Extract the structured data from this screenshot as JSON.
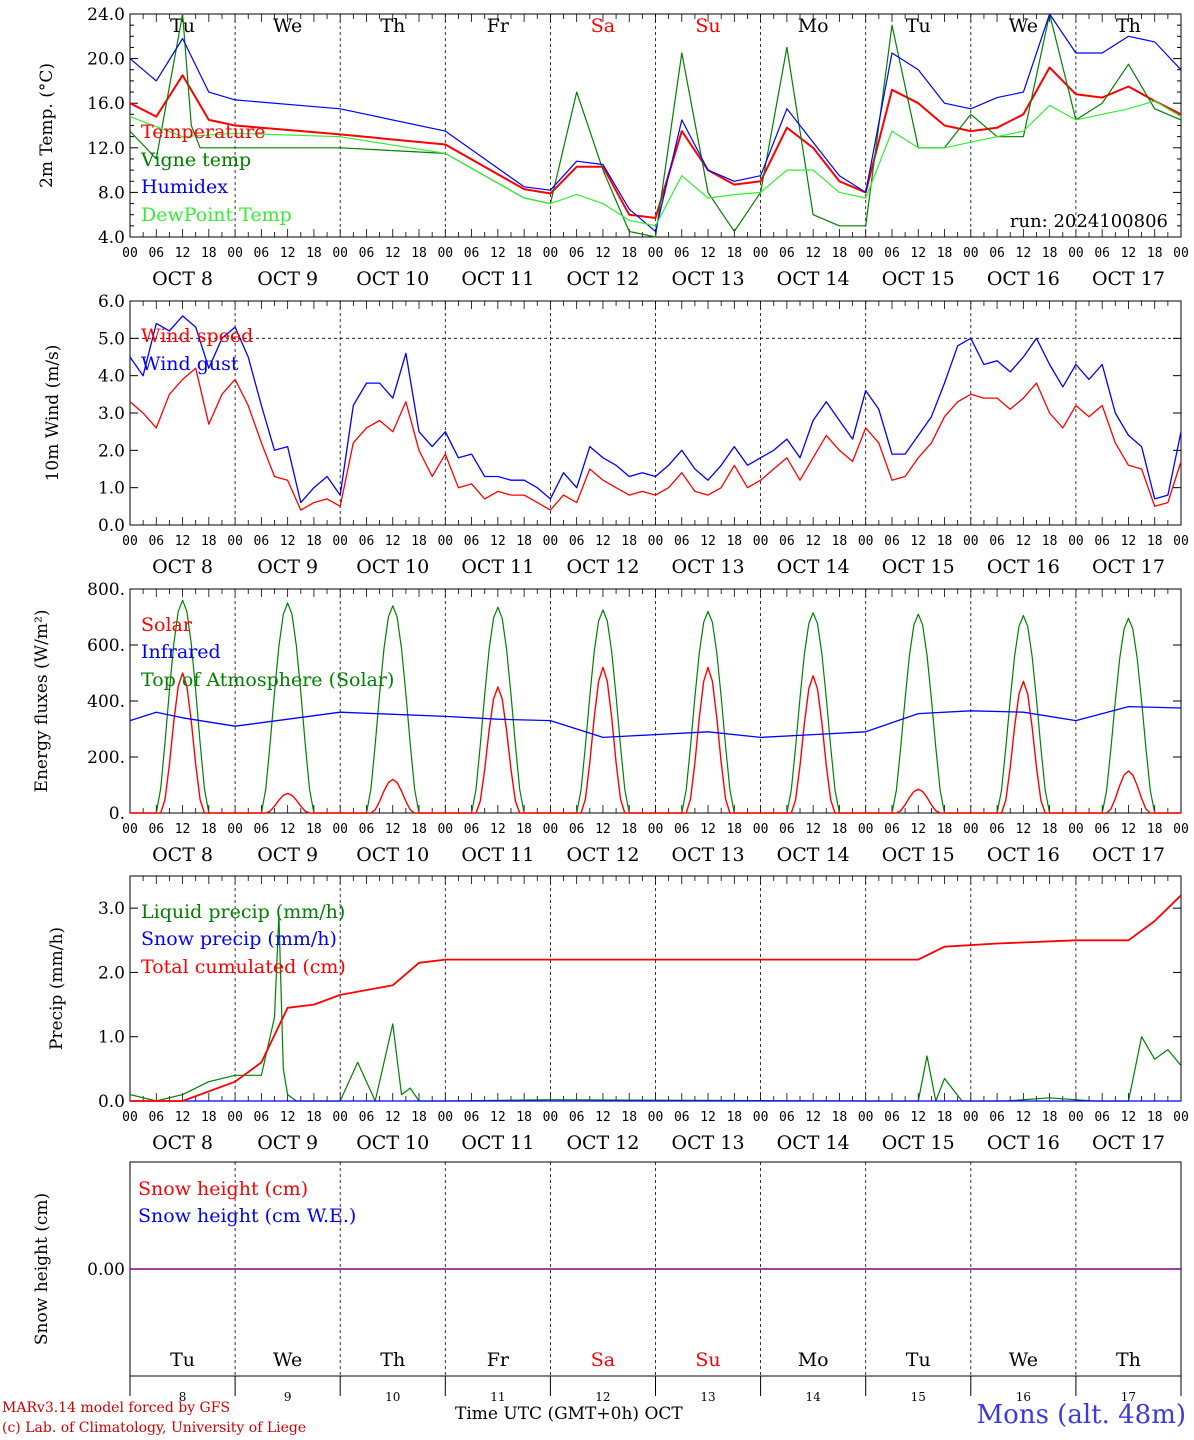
{
  "colors": {
    "red": "#ff0000",
    "blue": "#0000ff",
    "green": "#008000",
    "lightgreen": "#33ee33",
    "purple": "#800080"
  },
  "days": [
    "Tu",
    "We",
    "Th",
    "Fr",
    "Sa",
    "Su",
    "Mo",
    "Tu",
    "We",
    "Th"
  ],
  "weekend_days": [
    "Sa",
    "Su"
  ],
  "dates": [
    "OCT  8",
    "OCT  9",
    "OCT 10",
    "OCT 11",
    "OCT 12",
    "OCT 13",
    "OCT 14",
    "OCT 15",
    "OCT 16",
    "OCT 17"
  ],
  "bottom_dates": [
    "8",
    "9",
    "10",
    "11",
    "12",
    "13",
    "14",
    "15",
    "16",
    "17"
  ],
  "hour_ticks": [
    "00",
    "06",
    "12",
    "18"
  ],
  "end_hour": "00",
  "footer": {
    "line1": "MARv3.14 model forced by GFS",
    "line2": "(c) Lab. of Climatology, University of Liege",
    "xtitle": "Time UTC (GMT+0h) OCT",
    "station": "Mons (alt. 48m)"
  },
  "chart_data": [
    {
      "type": "line",
      "ylabel": "2m Temp. (°C)",
      "ylim": [
        4,
        24
      ],
      "yticks": [
        "4.0",
        "8.0",
        "12.0",
        "16.0",
        "20.0",
        "24.0"
      ],
      "annotation": "run: 2024100806",
      "x_unit": "hours from 00 UTC Oct 8",
      "series": [
        {
          "name": "Temperature",
          "color": "red",
          "x": [
            0,
            6,
            12,
            18,
            24,
            48,
            72,
            90,
            96,
            102,
            108,
            114,
            120,
            126,
            132,
            138,
            144,
            150,
            156,
            162,
            168,
            174,
            180,
            186,
            192,
            198,
            204,
            210,
            216,
            222,
            228,
            234,
            240
          ],
          "values": [
            16,
            14.8,
            18.5,
            14.5,
            14,
            13.2,
            12.3,
            8.3,
            7.9,
            10.3,
            10.3,
            6,
            5.7,
            13.5,
            10,
            8.7,
            9,
            13.8,
            12,
            9,
            8,
            17.2,
            16,
            14,
            13.5,
            13.8,
            15,
            19.2,
            16.8,
            16.5,
            17.5,
            16.2,
            15
          ]
        },
        {
          "name": "Vigne temp",
          "color": "green",
          "x": [
            0,
            6,
            12,
            14,
            16,
            18,
            24,
            48,
            72,
            90,
            96,
            102,
            108,
            114,
            120,
            126,
            132,
            138,
            144,
            150,
            156,
            162,
            168,
            174,
            180,
            186,
            192,
            198,
            204,
            210,
            216,
            222,
            228,
            234,
            240
          ],
          "values": [
            13.5,
            11,
            24,
            14,
            12,
            12,
            12,
            12,
            11.5,
            7.5,
            7,
            17,
            10,
            4.5,
            4,
            20.5,
            8,
            4.5,
            8,
            21,
            6,
            5,
            5,
            23,
            12,
            12,
            15,
            13,
            13,
            24,
            14.5,
            16,
            19.5,
            15.5,
            14.5
          ]
        },
        {
          "name": "Humidex",
          "color": "blue",
          "x": [
            0,
            6,
            12,
            18,
            24,
            48,
            72,
            90,
            96,
            102,
            108,
            114,
            120,
            126,
            132,
            138,
            144,
            150,
            156,
            162,
            168,
            174,
            180,
            186,
            192,
            198,
            204,
            210,
            216,
            222,
            228,
            234,
            240
          ],
          "values": [
            20,
            18,
            21.8,
            17,
            16.3,
            15.5,
            13.5,
            8.5,
            8.2,
            10.8,
            10.5,
            6.5,
            4.5,
            14.5,
            10,
            9,
            9.5,
            15.5,
            12.5,
            9.5,
            8,
            20.5,
            19,
            16,
            15.5,
            16.5,
            17,
            24,
            20.5,
            20.5,
            22,
            21.5,
            19
          ]
        },
        {
          "name": "DewPoint Temp",
          "color": "lightgreen",
          "x": [
            0,
            12,
            24,
            48,
            72,
            90,
            96,
            102,
            108,
            114,
            120,
            126,
            132,
            138,
            144,
            150,
            156,
            162,
            168,
            174,
            180,
            186,
            192,
            198,
            204,
            210,
            216,
            222,
            228,
            234,
            240
          ],
          "values": [
            14.8,
            13,
            13.3,
            13,
            11.5,
            7.5,
            7,
            7.8,
            7,
            5.5,
            5,
            9.5,
            7.5,
            7.8,
            8,
            10,
            10,
            8,
            7.5,
            13.5,
            12,
            12,
            12.5,
            13,
            13.5,
            15.8,
            14.5,
            15,
            15.5,
            16.2,
            14.8
          ]
        }
      ]
    },
    {
      "type": "line",
      "ylabel": "10m Wind (m/s)",
      "ylim": [
        0,
        6
      ],
      "yticks": [
        "0.0",
        "1.0",
        "2.0",
        "3.0",
        "4.0",
        "5.0",
        "6.0"
      ],
      "ref_line": 5,
      "series": [
        {
          "name": "Wind speed",
          "color": "red",
          "x": [
            0,
            3,
            6,
            9,
            12,
            15,
            18,
            21,
            24,
            27,
            30,
            33,
            36,
            39,
            42,
            45,
            48,
            51,
            54,
            57,
            60,
            63,
            66,
            69,
            72,
            75,
            78,
            81,
            84,
            87,
            90,
            93,
            96,
            99,
            102,
            105,
            108,
            111,
            114,
            117,
            120,
            123,
            126,
            129,
            132,
            135,
            138,
            141,
            144,
            147,
            150,
            153,
            156,
            159,
            162,
            165,
            168,
            171,
            174,
            177,
            180,
            183,
            186,
            189,
            192,
            195,
            198,
            201,
            204,
            207,
            210,
            213,
            216,
            219,
            222,
            225,
            228,
            231,
            234,
            237,
            240
          ],
          "values": [
            3.3,
            3.0,
            2.6,
            3.5,
            3.9,
            4.2,
            2.7,
            3.5,
            3.9,
            3.2,
            2.2,
            1.3,
            1.2,
            0.4,
            0.6,
            0.7,
            0.5,
            2.2,
            2.6,
            2.8,
            2.5,
            3.3,
            2.0,
            1.3,
            1.9,
            1.0,
            1.1,
            0.7,
            0.9,
            0.8,
            0.8,
            0.6,
            0.4,
            0.8,
            0.6,
            1.5,
            1.2,
            1.0,
            0.8,
            0.9,
            0.8,
            1.0,
            1.4,
            0.9,
            0.8,
            1.0,
            1.6,
            1.0,
            1.2,
            1.5,
            1.8,
            1.2,
            1.8,
            2.4,
            2.0,
            1.7,
            2.6,
            2.2,
            1.2,
            1.3,
            1.8,
            2.2,
            2.9,
            3.3,
            3.5,
            3.4,
            3.4,
            3.1,
            3.4,
            3.8,
            3.0,
            2.6,
            3.2,
            2.9,
            3.2,
            2.2,
            1.6,
            1.5,
            0.5,
            0.6,
            1.7
          ]
        },
        {
          "name": "Wind gust",
          "color": "blue",
          "x": [
            0,
            3,
            6,
            9,
            12,
            15,
            18,
            21,
            24,
            27,
            30,
            33,
            36,
            39,
            42,
            45,
            48,
            51,
            54,
            57,
            60,
            63,
            66,
            69,
            72,
            75,
            78,
            81,
            84,
            87,
            90,
            93,
            96,
            99,
            102,
            105,
            108,
            111,
            114,
            117,
            120,
            123,
            126,
            129,
            132,
            135,
            138,
            141,
            144,
            147,
            150,
            153,
            156,
            159,
            162,
            165,
            168,
            171,
            174,
            177,
            180,
            183,
            186,
            189,
            192,
            195,
            198,
            201,
            204,
            207,
            210,
            213,
            216,
            219,
            222,
            225,
            228,
            231,
            234,
            237,
            240
          ],
          "values": [
            4.5,
            4.0,
            5.4,
            5.2,
            5.6,
            5.3,
            4.2,
            5.0,
            5.3,
            4.5,
            3.2,
            2.0,
            2.1,
            0.6,
            1.0,
            1.3,
            0.8,
            3.2,
            3.8,
            3.8,
            3.4,
            4.6,
            2.5,
            2.1,
            2.5,
            1.8,
            1.9,
            1.3,
            1.3,
            1.2,
            1.2,
            1.0,
            0.7,
            1.4,
            1.0,
            2.1,
            1.8,
            1.6,
            1.3,
            1.4,
            1.3,
            1.6,
            2.0,
            1.5,
            1.2,
            1.6,
            2.1,
            1.6,
            1.8,
            2.0,
            2.3,
            1.8,
            2.8,
            3.3,
            2.8,
            2.3,
            3.6,
            3.1,
            1.9,
            1.9,
            2.4,
            2.9,
            3.8,
            4.8,
            5.0,
            4.3,
            4.4,
            4.1,
            4.5,
            5.0,
            4.3,
            3.7,
            4.3,
            3.9,
            4.3,
            3.0,
            2.4,
            2.1,
            0.7,
            0.8,
            2.5
          ]
        }
      ]
    },
    {
      "type": "line",
      "ylabel": "Energy fluxes (W/m²)",
      "ylim": [
        0,
        800
      ],
      "yticks": [
        "0.",
        "200.",
        "400.",
        "600.",
        "800."
      ],
      "series": [
        {
          "name": "Solar",
          "color": "red",
          "peaks": [
            500,
            70,
            120,
            450,
            520,
            520,
            490,
            85,
            470,
            150
          ]
        },
        {
          "name": "Infrared",
          "color": "blue",
          "x": [
            0,
            6,
            12,
            24,
            48,
            72,
            84,
            96,
            108,
            120,
            132,
            144,
            156,
            168,
            180,
            192,
            204,
            216,
            228,
            240
          ],
          "values": [
            330,
            360,
            340,
            310,
            360,
            345,
            335,
            330,
            270,
            280,
            290,
            270,
            280,
            290,
            355,
            365,
            360,
            330,
            380,
            375
          ]
        },
        {
          "name": "Top of Atmosphere (Solar)",
          "color": "green",
          "peaks": [
            760,
            750,
            740,
            735,
            725,
            720,
            715,
            710,
            705,
            695
          ]
        }
      ]
    },
    {
      "type": "line",
      "ylabel": "Precip (mm/h)",
      "ylim": [
        0,
        3.5
      ],
      "yticks": [
        "0.0",
        "1.0",
        "2.0",
        "3.0"
      ],
      "series": [
        {
          "name": "Liquid precip (mm/h)",
          "color": "green",
          "x": [
            0,
            6,
            12,
            18,
            24,
            30,
            33,
            34,
            35,
            36,
            38,
            42,
            48,
            52,
            56,
            60,
            62,
            64,
            66,
            72,
            96,
            168,
            180,
            182,
            184,
            186,
            190,
            200,
            210,
            220,
            228,
            231,
            234,
            237,
            240
          ],
          "values": [
            0.1,
            0,
            0.1,
            0.3,
            0.4,
            0.4,
            1.3,
            2.9,
            0.5,
            0.1,
            0,
            0,
            0,
            0.6,
            0,
            1.2,
            0.1,
            0.2,
            0,
            0,
            0.02,
            0,
            0,
            0.7,
            0,
            0.35,
            0,
            0,
            0.05,
            0,
            0,
            1.0,
            0.65,
            0.8,
            0.55
          ]
        },
        {
          "name": "Snow precip (mm/h)",
          "color": "blue",
          "x": [
            0,
            240
          ],
          "values": [
            0,
            0
          ]
        },
        {
          "name": "Total cumulated (cm)",
          "color": "red",
          "x": [
            0,
            12,
            24,
            30,
            36,
            42,
            48,
            60,
            66,
            72,
            180,
            186,
            198,
            216,
            228,
            234,
            240
          ],
          "values": [
            0,
            0,
            0.3,
            0.6,
            1.45,
            1.5,
            1.65,
            1.8,
            2.15,
            2.2,
            2.2,
            2.4,
            2.45,
            2.5,
            2.5,
            2.8,
            3.2
          ]
        }
      ]
    },
    {
      "type": "line",
      "ylabel": "Snow height (cm)",
      "yticks": [
        "0.00"
      ],
      "series": [
        {
          "name": "Snow height (cm)",
          "color": "red",
          "x": [
            0,
            240
          ],
          "values": [
            0,
            0
          ]
        },
        {
          "name": "Snow height (cm W.E.)",
          "color": "blue",
          "x": [
            0,
            240
          ],
          "values": [
            0,
            0
          ]
        }
      ]
    }
  ]
}
